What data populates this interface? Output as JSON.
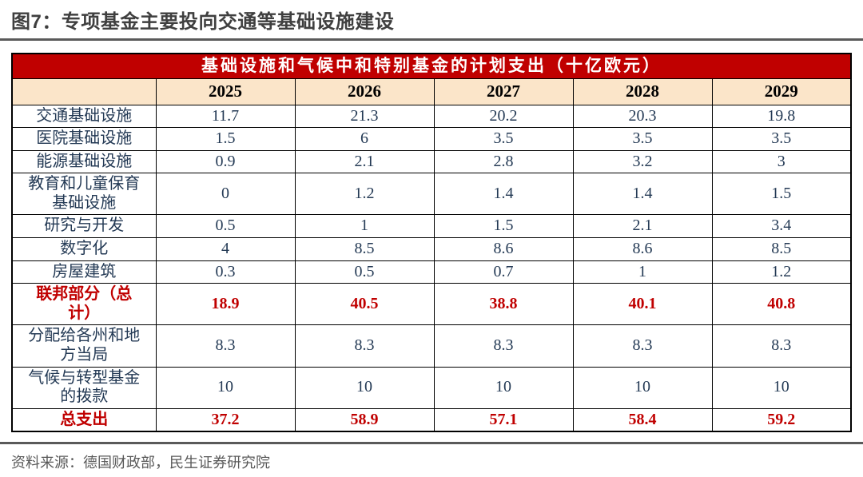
{
  "page": {
    "title": "图7：专项基金主要投向交通等基础设施建设",
    "source": "资料来源：德国财政部，民生证券研究院"
  },
  "colors": {
    "header_red": "#c00000",
    "year_row_cream": "#fbe5c9",
    "value_text_navy": "#243a55",
    "emphasis_red": "#c00000",
    "rule_gray": "#5a5a5a",
    "border_black": "#000000"
  },
  "chart_data": {
    "type": "table",
    "title": "基础设施和气候中和特别基金的计划支出（十亿欧元）",
    "columns": [
      "",
      "2025",
      "2026",
      "2027",
      "2028",
      "2029"
    ],
    "rows": [
      {
        "label": "交通基础设施",
        "values": [
          "11.7",
          "21.3",
          "20.2",
          "20.3",
          "19.8"
        ],
        "emphasis": false
      },
      {
        "label": "医院基础设施",
        "values": [
          "1.5",
          "6",
          "3.5",
          "3.5",
          "3.5"
        ],
        "emphasis": false
      },
      {
        "label": "能源基础设施",
        "values": [
          "0.9",
          "2.1",
          "2.8",
          "3.2",
          "3"
        ],
        "emphasis": false
      },
      {
        "label": "教育和儿童保育\n基础设施",
        "values": [
          "0",
          "1.2",
          "1.4",
          "1.4",
          "1.5"
        ],
        "emphasis": false
      },
      {
        "label": "研究与开发",
        "values": [
          "0.5",
          "1",
          "1.5",
          "2.1",
          "3.4"
        ],
        "emphasis": false
      },
      {
        "label": "数字化",
        "values": [
          "4",
          "8.5",
          "8.6",
          "8.6",
          "8.5"
        ],
        "emphasis": false
      },
      {
        "label": "房屋建筑",
        "values": [
          "0.3",
          "0.5",
          "0.7",
          "1",
          "1.2"
        ],
        "emphasis": false
      },
      {
        "label": "联邦部分（总\n计）",
        "values": [
          "18.9",
          "40.5",
          "38.8",
          "40.1",
          "40.8"
        ],
        "emphasis": true
      },
      {
        "label": "分配给各州和地\n方当局",
        "values": [
          "8.3",
          "8.3",
          "8.3",
          "8.3",
          "8.3"
        ],
        "emphasis": false
      },
      {
        "label": "气候与转型基金\n的拨款",
        "values": [
          "10",
          "10",
          "10",
          "10",
          "10"
        ],
        "emphasis": false
      },
      {
        "label": "总支出",
        "values": [
          "37.2",
          "58.9",
          "57.1",
          "58.4",
          "59.2"
        ],
        "emphasis": true
      }
    ]
  }
}
